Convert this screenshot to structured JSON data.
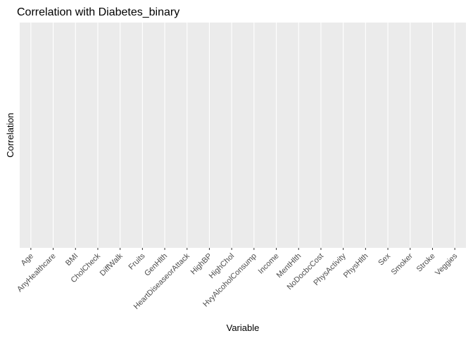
{
  "chart_data": {
    "type": "bar",
    "title": "Correlation with Diabetes_binary",
    "x_label": "Variable",
    "y_label": "Correlation",
    "categories": [
      "Age",
      "AnyHealthcare",
      "BMI",
      "CholCheck",
      "DiffWalk",
      "Fruits",
      "GenHlth",
      "HeartDiseaseorAttack",
      "HighBP",
      "HighChol",
      "HvyAlcoholConsump",
      "Income",
      "MentHlth",
      "NoDocbcCost",
      "PhysActivity",
      "PhysHlth",
      "Sex",
      "Smoker",
      "Stroke",
      "Veggies"
    ],
    "grid": true
  }
}
